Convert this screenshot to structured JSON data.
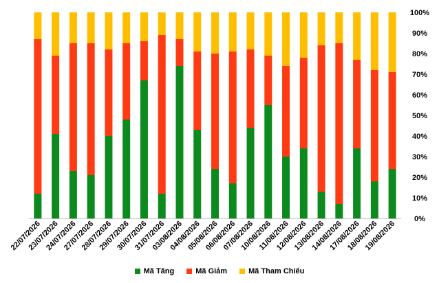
{
  "chart_data": {
    "type": "bar",
    "stacked": true,
    "percent": true,
    "categories": [
      "22/07/2026",
      "23/07/2026",
      "24/07/2026",
      "27/07/2026",
      "28/07/2026",
      "29/07/2026",
      "30/07/2026",
      "31/07/2026",
      "03/08/2026",
      "04/08/2026",
      "05/08/2026",
      "06/08/2026",
      "07/08/2026",
      "10/08/2026",
      "11/08/2026",
      "12/08/2026",
      "13/08/2026",
      "14/08/2026",
      "17/08/2026",
      "18/08/2026",
      "19/08/2026"
    ],
    "series": [
      {
        "name": "Mã Tăng",
        "color": "#0d8a1e",
        "values": [
          12,
          41,
          23,
          21,
          40,
          48,
          67,
          12,
          74,
          43,
          24,
          17,
          44,
          55,
          30,
          34,
          13,
          7,
          34,
          18,
          24
        ]
      },
      {
        "name": "Mã Giảm",
        "color": "#ff3b14",
        "values": [
          75,
          38,
          62,
          64,
          42,
          37,
          19,
          77,
          13,
          38,
          56,
          64,
          38,
          24,
          44,
          44,
          71,
          78,
          43,
          54,
          47
        ]
      },
      {
        "name": "Mã Tham Chiếu",
        "color": "#ffbf00",
        "values": [
          13,
          21,
          15,
          15,
          18,
          15,
          14,
          11,
          13,
          19,
          20,
          19,
          18,
          21,
          26,
          22,
          16,
          15,
          23,
          28,
          29
        ]
      }
    ],
    "yticks": [
      "0%",
      "10%",
      "20%",
      "30%",
      "40%",
      "50%",
      "60%",
      "70%",
      "80%",
      "90%",
      "100%"
    ],
    "ylim": [
      0,
      100
    ],
    "y_axis_position": "right",
    "grid": false,
    "legend": "bottom"
  }
}
